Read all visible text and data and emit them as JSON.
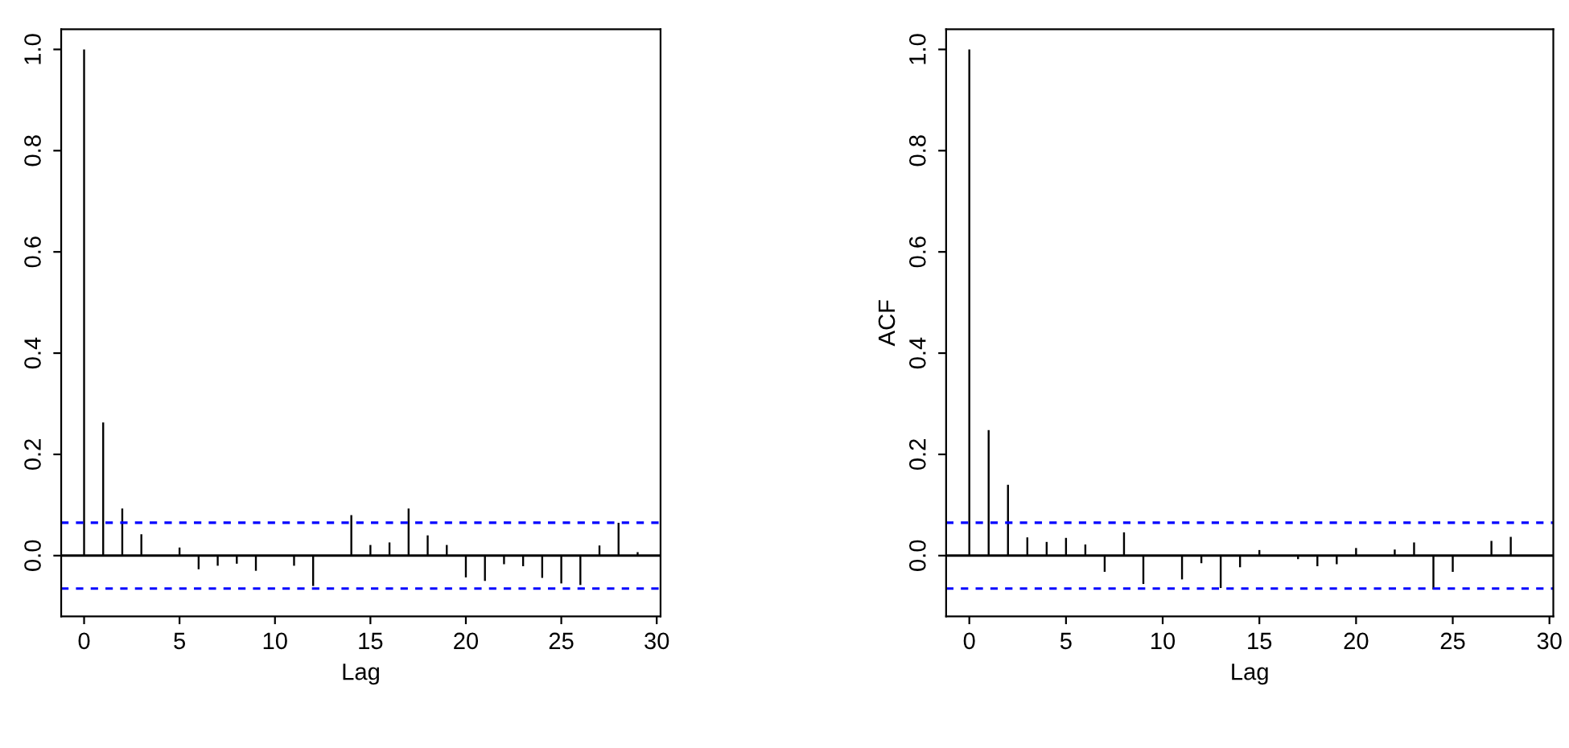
{
  "chart_data": [
    {
      "type": "bar",
      "xlabel": "Lag",
      "x": [
        0,
        1,
        2,
        3,
        4,
        5,
        6,
        7,
        8,
        9,
        10,
        11,
        12,
        13,
        14,
        15,
        16,
        17,
        18,
        19,
        20,
        21,
        22,
        23,
        24,
        25,
        26,
        27,
        28,
        29
      ],
      "series": [
        {
          "color": "#000000",
          "values": [
            1.0,
            0.263,
            0.093,
            0.042,
            null,
            0.016,
            -0.027,
            -0.02,
            -0.016,
            -0.03,
            null,
            -0.02,
            -0.06,
            null,
            0.08,
            0.021,
            0.026,
            0.093,
            0.04,
            0.021,
            -0.043,
            -0.05,
            -0.017,
            -0.021,
            -0.044,
            -0.055,
            -0.058,
            0.02,
            0.065,
            0.007
          ]
        }
      ],
      "xlim": [
        -1.2,
        30.2
      ],
      "ylim": [
        -0.12,
        1.04
      ],
      "xticks": [
        0,
        5,
        10,
        15,
        20,
        25,
        30
      ],
      "yticks": [
        {
          "value": 0,
          "label": "0.0"
        },
        {
          "value": 0.2,
          "label": "0.2"
        },
        {
          "value": 0.4,
          "label": "0.4"
        },
        {
          "value": 0.6,
          "label": "0.6"
        },
        {
          "value": 0.8,
          "label": "0.8"
        },
        {
          "value": 1.0,
          "label": "1.0"
        }
      ],
      "ref_lines": [
        {
          "axis": "y",
          "value": 0,
          "color": "#000000",
          "line_style": "solid"
        },
        {
          "axis": "y",
          "value": 0.065,
          "color": "#0000ff",
          "line_style": "dashed"
        },
        {
          "axis": "y",
          "value": -0.065,
          "color": "#0000ff",
          "line_style": "dashed"
        }
      ],
      "grid": false,
      "legend": false
    },
    {
      "type": "bar",
      "xlabel": "Lag",
      "ylabel": "ACF",
      "x": [
        0,
        1,
        2,
        3,
        4,
        5,
        6,
        7,
        8,
        9,
        10,
        11,
        12,
        13,
        14,
        15,
        16,
        17,
        18,
        19,
        20,
        21,
        22,
        23,
        24,
        25,
        26,
        27,
        28
      ],
      "series": [
        {
          "color": "#000000",
          "values": [
            1.0,
            0.248,
            0.14,
            0.036,
            0.027,
            0.035,
            0.022,
            -0.032,
            0.046,
            -0.056,
            0.001,
            -0.047,
            -0.015,
            -0.064,
            -0.023,
            0.011,
            0.001,
            -0.007,
            -0.021,
            -0.017,
            0.015,
            0.001,
            0.012,
            0.026,
            -0.067,
            -0.032,
            null,
            0.029,
            0.037
          ]
        }
      ],
      "xlim": [
        -1.2,
        30.2
      ],
      "ylim": [
        -0.12,
        1.04
      ],
      "xticks": [
        0,
        5,
        10,
        15,
        20,
        25,
        30
      ],
      "yticks": [
        {
          "value": 0,
          "label": "0.0"
        },
        {
          "value": 0.2,
          "label": "0.2"
        },
        {
          "value": 0.4,
          "label": "0.4"
        },
        {
          "value": 0.6,
          "label": "0.6"
        },
        {
          "value": 0.8,
          "label": "0.8"
        },
        {
          "value": 1.0,
          "label": "1.0"
        }
      ],
      "ref_lines": [
        {
          "axis": "y",
          "value": 0,
          "color": "#000000",
          "line_style": "solid"
        },
        {
          "axis": "y",
          "value": 0.065,
          "color": "#0000ff",
          "line_style": "dashed"
        },
        {
          "axis": "y",
          "value": -0.065,
          "color": "#0000ff",
          "line_style": "dashed"
        }
      ],
      "grid": false,
      "legend": false
    }
  ]
}
